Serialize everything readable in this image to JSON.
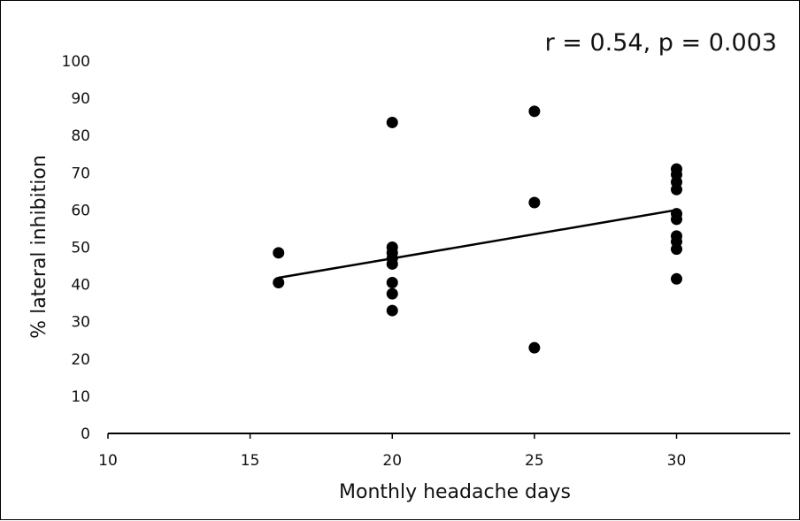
{
  "chart_data": {
    "type": "scatter",
    "annotation": "r = 0.54, p = 0.003",
    "xlabel": "Monthly headache days",
    "ylabel": "% lateral inhibition",
    "xlim": [
      10,
      34
    ],
    "ylim": [
      0,
      100
    ],
    "x_ticks": [
      10,
      15,
      20,
      25,
      30
    ],
    "y_ticks": [
      0,
      10,
      20,
      30,
      40,
      50,
      60,
      70,
      80,
      90,
      100
    ],
    "grid": false,
    "legend": "none",
    "marker_color": "#000000",
    "series": [
      {
        "points": [
          {
            "x": 16,
            "y": 48.5
          },
          {
            "x": 16,
            "y": 40.5
          },
          {
            "x": 20,
            "y": 83.5
          },
          {
            "x": 20,
            "y": 50
          },
          {
            "x": 20,
            "y": 48.5
          },
          {
            "x": 20,
            "y": 47
          },
          {
            "x": 20,
            "y": 45.5
          },
          {
            "x": 20,
            "y": 40.5
          },
          {
            "x": 20,
            "y": 37.5
          },
          {
            "x": 20,
            "y": 33
          },
          {
            "x": 25,
            "y": 86.5
          },
          {
            "x": 25,
            "y": 62
          },
          {
            "x": 25,
            "y": 23
          },
          {
            "x": 30,
            "y": 71
          },
          {
            "x": 30,
            "y": 69.5
          },
          {
            "x": 30,
            "y": 67.5
          },
          {
            "x": 30,
            "y": 65.5
          },
          {
            "x": 30,
            "y": 59
          },
          {
            "x": 30,
            "y": 57.5
          },
          {
            "x": 30,
            "y": 53
          },
          {
            "x": 30,
            "y": 51.5
          },
          {
            "x": 30,
            "y": 49.5
          },
          {
            "x": 30,
            "y": 41.5
          }
        ]
      }
    ],
    "trendline": {
      "x": [
        16,
        30
      ],
      "y": [
        41.8,
        60
      ]
    }
  }
}
